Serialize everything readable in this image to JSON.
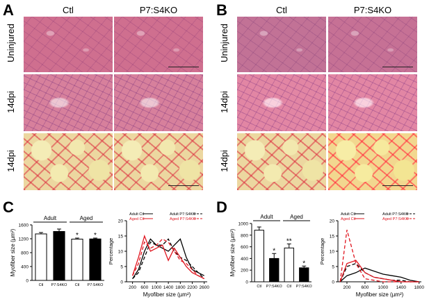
{
  "panels": {
    "A": {
      "label": "A",
      "cols": [
        "Ctl",
        "P7:S4KO"
      ],
      "rows": [
        "Uninjured",
        "14dpi",
        "14dpi"
      ]
    },
    "B": {
      "label": "B",
      "cols": [
        "Ctl",
        "P7:S4KO"
      ],
      "rows": [
        "Uninjured",
        "14dpi",
        "14dpi"
      ]
    },
    "C": {
      "label": "C"
    },
    "D": {
      "label": "D"
    }
  },
  "chart_data": [
    {
      "id": "C-bar",
      "type": "bar",
      "categories": [
        "Ctl",
        "P7:S4KO",
        "Ctl",
        "P7:S4KO"
      ],
      "groups": [
        "Adult",
        "Aged"
      ],
      "values": [
        1340,
        1410,
        1190,
        1195
      ],
      "errors": [
        40,
        70,
        30,
        25
      ],
      "fill": [
        "white",
        "black",
        "white",
        "black"
      ],
      "significance": [
        "",
        "",
        "*",
        "*"
      ],
      "ylabel": "Myofiber size (µm²)",
      "ylim": [
        0,
        1600
      ],
      "yticks": [
        "0",
        "400",
        "800",
        "1200",
        "1600"
      ]
    },
    {
      "id": "C-line",
      "type": "line",
      "xlabel": "Myofiber size (µm²)",
      "ylabel": "Percentage",
      "xlim": [
        0,
        2700
      ],
      "ylim": [
        0,
        20
      ],
      "xticks": [
        "200",
        "600",
        "1000",
        "1400",
        "1800",
        "2200",
        "2600"
      ],
      "yticks": [
        "0",
        "5",
        "10",
        "15",
        "20"
      ],
      "x": [
        200,
        400,
        600,
        800,
        1000,
        1200,
        1400,
        1600,
        1800,
        2000,
        2200,
        2400,
        2600
      ],
      "series": [
        {
          "name": "Adult Ctl",
          "color": "#000000",
          "dash": "",
          "values": [
            1,
            4,
            10,
            14,
            12,
            11,
            10,
            12,
            14,
            8,
            4,
            3,
            2
          ]
        },
        {
          "name": "Adult P7:S4KO",
          "color": "#000000",
          "dash": "5,3",
          "values": [
            1,
            3,
            8,
            13,
            12,
            12,
            14,
            10,
            8,
            7,
            5,
            3,
            1
          ]
        },
        {
          "name": "Aged Ctl",
          "color": "#e0141e",
          "dash": "",
          "values": [
            2,
            8,
            15,
            10,
            11,
            12,
            7,
            11,
            8,
            5,
            3,
            2,
            1
          ]
        },
        {
          "name": "Aged P7:S4KO",
          "color": "#e0141e",
          "dash": "5,3",
          "values": [
            2,
            6,
            13,
            11,
            12,
            14,
            13,
            10,
            7,
            6,
            4,
            2,
            1
          ]
        }
      ]
    },
    {
      "id": "D-bar",
      "type": "bar",
      "categories": [
        "Ctl",
        "P7:S4KO",
        "Ctl",
        "P7:S4KO"
      ],
      "groups": [
        "Adult",
        "Aged"
      ],
      "values": [
        885,
        400,
        580,
        240
      ],
      "errors": [
        55,
        85,
        70,
        30
      ],
      "fill": [
        "white",
        "black",
        "white",
        "black"
      ],
      "significance": [
        "",
        "*",
        "**",
        "*"
      ],
      "ylabel": "Myofiber size (µm²)",
      "ylim": [
        0,
        1000
      ],
      "yticks": [
        "0",
        "200",
        "400",
        "600",
        "800",
        "1000"
      ]
    },
    {
      "id": "D-line",
      "type": "line",
      "xlabel": "Myofiber size (µm²)",
      "ylabel": "Percentage",
      "xlim": [
        0,
        1850
      ],
      "ylim": [
        0,
        20
      ],
      "xticks": [
        "200",
        "600",
        "1000",
        "1400",
        "1800"
      ],
      "yticks": [
        "0",
        "5",
        "10",
        "15",
        "20"
      ],
      "x": [
        50,
        200,
        400,
        600,
        800,
        1000,
        1200,
        1400,
        1600,
        1800
      ],
      "series": [
        {
          "name": "Adult Ctl",
          "color": "#000000",
          "dash": "",
          "values": [
            0,
            2,
            3,
            4.5,
            3.5,
            2.5,
            2,
            1.5,
            0.5,
            0
          ]
        },
        {
          "name": "Adult P7:S4KO",
          "color": "#000000",
          "dash": "5,3",
          "values": [
            0,
            5,
            6,
            3,
            1.5,
            1,
            0.5,
            0.5,
            0,
            0
          ]
        },
        {
          "name": "Aged Ctl",
          "color": "#e0141e",
          "dash": "",
          "values": [
            0,
            6,
            7,
            3,
            1.5,
            1,
            0.5,
            0,
            0,
            0
          ]
        },
        {
          "name": "Aged P7:S4KO",
          "color": "#e0141e",
          "dash": "5,3",
          "values": [
            0,
            17,
            6,
            1,
            0.5,
            0,
            0,
            0,
            0,
            0
          ]
        }
      ]
    }
  ]
}
